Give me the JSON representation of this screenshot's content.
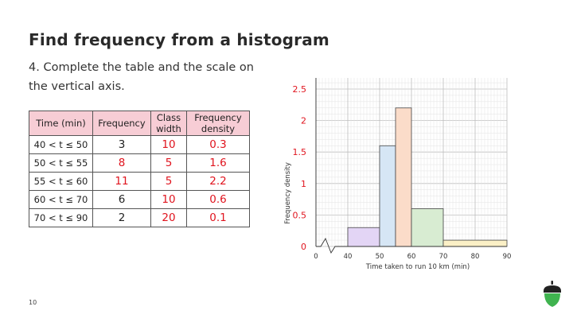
{
  "title": "Find frequency from a histogram",
  "instruction": "4. Complete the table and the scale on the vertical axis.",
  "page_number": "10",
  "table": {
    "headers": [
      "Time (min)",
      "Frequency",
      "Class width",
      "Frequency density"
    ],
    "rows": [
      {
        "interval": "40 < t ≤ 50",
        "frequency": "3",
        "class_width": "10",
        "density": "0.3"
      },
      {
        "interval": "50 < t ≤ 55",
        "frequency": "8",
        "class_width": "5",
        "density": "1.6"
      },
      {
        "interval": "55 < t ≤ 60",
        "frequency": "11",
        "class_width": "5",
        "density": "2.2"
      },
      {
        "interval": "60 < t ≤ 70",
        "frequency": "6",
        "class_width": "10",
        "density": "0.6"
      },
      {
        "interval": "70 < t ≤ 90",
        "frequency": "2",
        "class_width": "20",
        "density": "0.1"
      }
    ]
  },
  "chart_data": {
    "type": "bar",
    "subtype": "histogram",
    "xlabel": "Time taken to run 10 km (min)",
    "ylabel": "Frequency density",
    "x_ticks": [
      0,
      40,
      50,
      60,
      70,
      80,
      90
    ],
    "y_ticks": [
      "0",
      "0.5",
      "1",
      "1.5",
      "2",
      "2.5"
    ],
    "xlim": [
      40,
      90
    ],
    "ylim": [
      0,
      2.5
    ],
    "axis_break": true,
    "grid": true,
    "bins": [
      {
        "from": 40,
        "to": 50,
        "density": 0.3,
        "color": "#e3d5f5"
      },
      {
        "from": 50,
        "to": 55,
        "density": 1.6,
        "color": "#d6e6f5"
      },
      {
        "from": 55,
        "to": 60,
        "density": 2.2,
        "color": "#fbdcc9"
      },
      {
        "from": 60,
        "to": 70,
        "density": 0.6,
        "color": "#d8ecd2"
      },
      {
        "from": 70,
        "to": 90,
        "density": 0.1,
        "color": "#fbf0c6"
      }
    ],
    "y_tick_color": "#e0141e"
  }
}
